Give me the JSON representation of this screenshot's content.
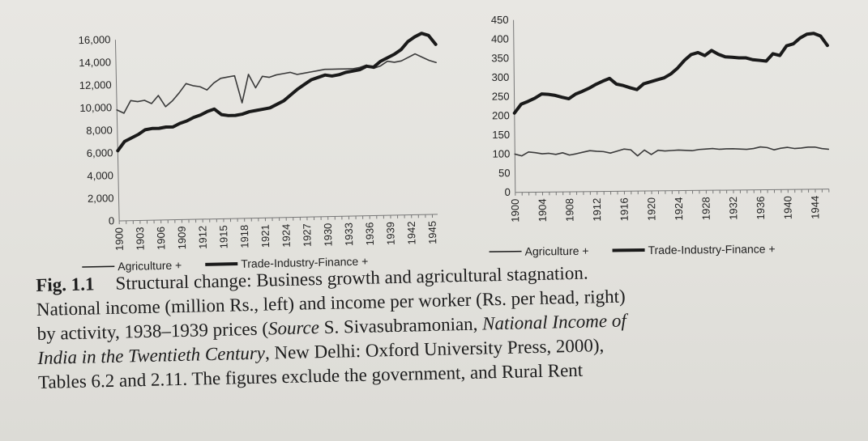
{
  "chart_data": [
    {
      "type": "line",
      "title": "",
      "xlabel": "",
      "ylabel": "",
      "ylim": [
        0,
        16000
      ],
      "yticks": [
        "0",
        "2,000",
        "4,000",
        "6,000",
        "8,000",
        "10,000",
        "12,000",
        "14,000",
        "16,000"
      ],
      "xticks": [
        "1900",
        "1903",
        "1906",
        "1909",
        "1912",
        "1915",
        "1918",
        "1921",
        "1924",
        "1927",
        "1930",
        "1933",
        "1936",
        "1939",
        "1942",
        "1945"
      ],
      "legend_position": "bottom",
      "grid": false,
      "x": [
        1900,
        1901,
        1902,
        1903,
        1904,
        1905,
        1906,
        1907,
        1908,
        1909,
        1910,
        1911,
        1912,
        1913,
        1914,
        1915,
        1916,
        1917,
        1918,
        1919,
        1920,
        1921,
        1922,
        1923,
        1924,
        1925,
        1926,
        1927,
        1928,
        1929,
        1930,
        1931,
        1932,
        1933,
        1934,
        1935,
        1936,
        1937,
        1938,
        1939,
        1940,
        1941,
        1942,
        1943,
        1944,
        1945,
        1946
      ],
      "series": [
        {
          "name": "Agriculture +",
          "style": "thin",
          "values": [
            9800,
            9500,
            10600,
            10500,
            10600,
            10300,
            11000,
            10000,
            10500,
            11200,
            12000,
            11800,
            11700,
            11400,
            12000,
            12400,
            12500,
            12600,
            10200,
            12700,
            11500,
            12500,
            12400,
            12600,
            12700,
            12800,
            12600,
            12700,
            12800,
            12900,
            13000,
            13000,
            13000,
            13000,
            13000,
            13100,
            13300,
            13000,
            13200,
            13600,
            13500,
            13600,
            13900,
            14200,
            13900,
            13600,
            13400
          ]
        },
        {
          "name": "Trade-Industry-Finance +",
          "style": "thick",
          "values": [
            6200,
            7000,
            7300,
            7600,
            8000,
            8100,
            8100,
            8200,
            8200,
            8500,
            8700,
            9000,
            9200,
            9500,
            9700,
            9200,
            9100,
            9100,
            9200,
            9400,
            9500,
            9600,
            9700,
            10000,
            10300,
            10800,
            11300,
            11700,
            12100,
            12300,
            12500,
            12400,
            12500,
            12700,
            12800,
            12900,
            13200,
            13100,
            13600,
            13900,
            14200,
            14600,
            15300,
            15700,
            16000,
            15800,
            15000
          ]
        }
      ]
    },
    {
      "type": "line",
      "title": "",
      "xlabel": "",
      "ylabel": "",
      "ylim": [
        0,
        450
      ],
      "yticks": [
        "0",
        "50",
        "100",
        "150",
        "200",
        "250",
        "300",
        "350",
        "400",
        "450"
      ],
      "xticks": [
        "1900",
        "1904",
        "1908",
        "1912",
        "1916",
        "1920",
        "1924",
        "1928",
        "1932",
        "1936",
        "1940",
        "1944"
      ],
      "legend_position": "bottom",
      "grid": false,
      "x": [
        1900,
        1901,
        1902,
        1903,
        1904,
        1905,
        1906,
        1907,
        1908,
        1909,
        1910,
        1911,
        1912,
        1913,
        1914,
        1915,
        1916,
        1917,
        1918,
        1919,
        1920,
        1921,
        1922,
        1923,
        1924,
        1925,
        1926,
        1927,
        1928,
        1929,
        1930,
        1931,
        1932,
        1933,
        1934,
        1935,
        1936,
        1937,
        1938,
        1939,
        1940,
        1941,
        1942,
        1943,
        1944,
        1945,
        1946
      ],
      "series": [
        {
          "name": "Agriculture +",
          "style": "thin",
          "values": [
            100,
            95,
            105,
            103,
            100,
            101,
            98,
            102,
            96,
            99,
            103,
            107,
            105,
            104,
            100,
            105,
            110,
            108,
            92,
            107,
            95,
            106,
            104,
            105,
            106,
            105,
            104,
            107,
            108,
            109,
            107,
            108,
            108,
            107,
            106,
            108,
            112,
            110,
            104,
            108,
            110,
            107,
            108,
            110,
            110,
            106,
            104
          ]
        },
        {
          "name": "Trade-Industry-Finance +",
          "style": "thick",
          "values": [
            207,
            230,
            237,
            245,
            256,
            255,
            252,
            247,
            243,
            255,
            262,
            270,
            280,
            288,
            295,
            280,
            276,
            270,
            265,
            280,
            285,
            290,
            295,
            305,
            320,
            340,
            355,
            360,
            352,
            365,
            355,
            348,
            347,
            345,
            345,
            340,
            338,
            336,
            355,
            350,
            375,
            380,
            395,
            405,
            407,
            400,
            375
          ]
        }
      ]
    }
  ],
  "caption": {
    "fig_label": "Fig. 1.1",
    "line1": "Structural change: Business growth and agricultural stagnation.",
    "line2": "National income (million Rs., left) and income per worker (Rs. per head, right)",
    "line3_a": "by activity, 1938–1939 prices (",
    "line3_b": "Source",
    "line3_c": " S. Sivasubramonian, ",
    "line3_d": "National Income of",
    "line4_a": "India in the Twentieth Century",
    "line4_b": ", New Delhi: Oxford University Press, 2000),",
    "line5": "Tables 6.2 and 2.11. The figures exclude the government, and Rural Rent"
  }
}
